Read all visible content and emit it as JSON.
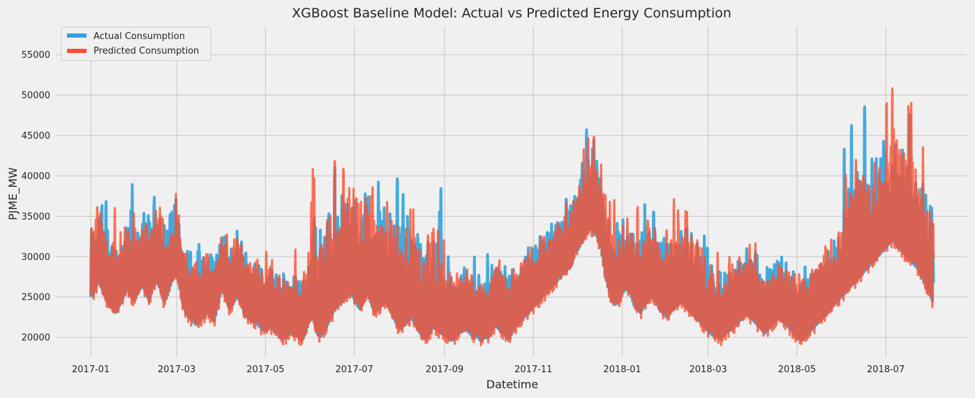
{
  "chart_data": {
    "type": "line",
    "title": "XGBoost Baseline Model: Actual vs Predicted Energy Consumption",
    "xlabel": "Datetime",
    "ylabel": "PJME_MW",
    "x_ticks": [
      "2017-01",
      "2017-03",
      "2017-05",
      "2017-07",
      "2017-09",
      "2017-11",
      "2018-01",
      "2018-03",
      "2018-05",
      "2018-07"
    ],
    "y_ticks": [
      20000,
      25000,
      30000,
      35000,
      40000,
      45000,
      50000,
      55000
    ],
    "xlim": [
      "2016-12-08",
      "2018-08-26"
    ],
    "ylim": [
      17600,
      58500
    ],
    "grid": true,
    "legend_position": "top-left",
    "x_range": [
      "2017-01-01",
      "2018-08-02"
    ],
    "series": [
      {
        "name": "Actual Consumption",
        "color": "#30a2da",
        "daily_min": [
          25000,
          25500,
          27000,
          26000,
          25000,
          24000,
          23500,
          23000,
          24000,
          25000,
          26000,
          25000,
          24500,
          25500,
          26500,
          25500,
          24500,
          26000,
          27000,
          26000,
          24500,
          25000,
          26500,
          28000,
          27000,
          24500,
          23000,
          22500,
          22000,
          21500,
          22000,
          22500,
          23000,
          22500,
          22000,
          24000,
          26000,
          25000,
          23500,
          24000,
          25000,
          24500,
          23000,
          22500,
          22000,
          22000,
          21500,
          21000,
          20800,
          21200,
          21000,
          20500,
          20000,
          19800,
          20200,
          20500,
          20300,
          20000,
          19600,
          20500,
          22000,
          22500,
          20500,
          20000,
          20800,
          21500,
          22500,
          23500,
          24000,
          24500,
          25000,
          25500,
          25000,
          24000,
          23500,
          24500,
          25500,
          24000,
          23000,
          23500,
          24000,
          24500,
          23500,
          22500,
          21500,
          21000,
          21500,
          22000,
          22500,
          21500,
          20800,
          20000,
          19800,
          20500,
          21200,
          21000,
          20500,
          20300,
          20000,
          19600,
          20000,
          20500,
          20800,
          21000,
          20500,
          20000,
          20200,
          19500,
          20000,
          19900,
          20800,
          21500,
          21000,
          20600,
          20000,
          19800,
          21000,
          21500,
          22000,
          22500,
          23000,
          23500,
          24000,
          24500,
          25000,
          25500,
          26000,
          26500,
          27000,
          27500,
          28000,
          28500,
          29000,
          30500,
          31000,
          32000,
          33000,
          33500,
          33000,
          32500,
          31000,
          28000,
          26000,
          24500,
          24000,
          24500,
          25500,
          26000,
          25500,
          24000,
          23500,
          23000,
          24000,
          24500,
          25000,
          24500,
          23500,
          23000,
          22500,
          23000,
          23500,
          24000,
          24500,
          24000,
          23500,
          23000,
          22500,
          22000,
          21500,
          21000,
          20500,
          20200,
          20000,
          19800,
          20300,
          20800,
          21000,
          21500,
          22000,
          22500,
          23000,
          22500,
          22000,
          21500,
          21000,
          20500,
          21000,
          21500,
          22000,
          22500,
          22000,
          21500,
          21000,
          20500,
          20000,
          19600,
          20000,
          20500,
          21000,
          21500,
          22000,
          22500,
          23000,
          23500,
          24000,
          24500,
          25000,
          25500,
          26000,
          26500,
          27000,
          27500,
          28000,
          28500,
          29000,
          29500,
          30000,
          30500,
          31000,
          31500,
          32000,
          31500,
          31000,
          30500,
          30000,
          29500,
          29000,
          28500,
          27500,
          26500,
          25500,
          24500
        ]
      },
      {
        "name": "Predicted Consumption",
        "color": "#fc4f30",
        "daily_min": [
          24700,
          25300,
          26700,
          25800,
          24800,
          23800,
          23300,
          22800,
          23800,
          24800,
          25800,
          24800,
          24300,
          25300,
          26300,
          25300,
          24300,
          25800,
          26800,
          25800,
          24300,
          24800,
          26300,
          27800,
          26800,
          24300,
          22800,
          22300,
          21800,
          21300,
          21800,
          22300,
          22800,
          22300,
          21800,
          23800,
          25800,
          24800,
          23300,
          23800,
          24800,
          24300,
          22800,
          22300,
          21800,
          21800,
          21300,
          20800,
          20600,
          21000,
          20800,
          20300,
          19800,
          19600,
          20000,
          20300,
          20100,
          19800,
          19400,
          20300,
          21800,
          22300,
          20300,
          19800,
          20600,
          21300,
          22300,
          23300,
          23800,
          24300,
          24800,
          25300,
          24800,
          23800,
          23300,
          24300,
          25300,
          23800,
          22800,
          23300,
          23800,
          24300,
          23300,
          22300,
          21300,
          20800,
          21300,
          21800,
          22300,
          21300,
          20600,
          19800,
          19600,
          20300,
          21000,
          20800,
          20300,
          20100,
          19800,
          19400,
          19800,
          20300,
          20600,
          20800,
          20300,
          19800,
          20000,
          19300,
          19800,
          19700,
          20600,
          21300,
          20800,
          20400,
          19800,
          19600,
          20800,
          21300,
          21800,
          22300,
          22800,
          23300,
          23800,
          24300,
          24800,
          25300,
          25800,
          26300,
          26800,
          27300,
          27800,
          28300,
          28800,
          30300,
          30800,
          31800,
          32800,
          33300,
          32800,
          32300,
          30800,
          27800,
          25800,
          24300,
          23800,
          24300,
          25300,
          25800,
          25300,
          23800,
          23300,
          22800,
          23800,
          24300,
          24800,
          24300,
          23300,
          22800,
          22300,
          22800,
          23300,
          23800,
          24300,
          23800,
          23300,
          22800,
          22300,
          21800,
          21300,
          20800,
          20300,
          20000,
          19800,
          19600,
          20100,
          20600,
          20800,
          21300,
          21800,
          22300,
          22800,
          22300,
          21800,
          21300,
          20800,
          20300,
          20800,
          21300,
          21800,
          22300,
          21800,
          21300,
          20800,
          20300,
          19800,
          19400,
          19800,
          20300,
          20800,
          21300,
          21800,
          22300,
          22800,
          23300,
          23800,
          24300,
          24800,
          25300,
          25800,
          26300,
          26800,
          27300,
          27800,
          28300,
          28800,
          29300,
          29800,
          30300,
          30800,
          31300,
          31800,
          31300,
          30800,
          30300,
          29800,
          29300,
          28800,
          28300,
          27300,
          26300,
          25300,
          24300
        ]
      }
    ]
  }
}
